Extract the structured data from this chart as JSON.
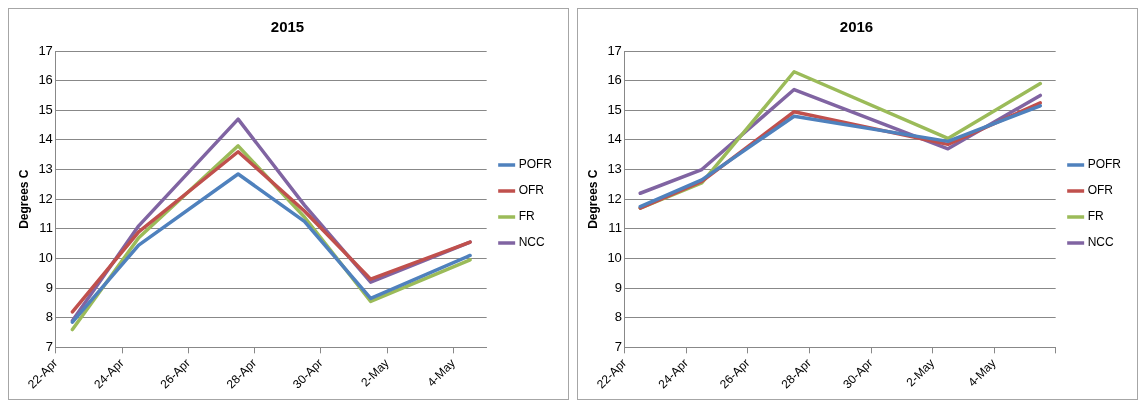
{
  "chart_data": [
    {
      "type": "line",
      "title": "2015",
      "ylabel": "Degrees C",
      "legend": "right",
      "grid": "y",
      "marker": "none",
      "x": [
        "2015-04-22T12:00",
        "2015-04-24T12:00",
        "2015-04-27T12:00",
        "2015-04-29T12:00",
        "2015-05-01T12:00",
        "2015-05-04T12:00"
      ],
      "xlim": [
        "2015-04-22",
        "2015-05-05"
      ],
      "xticks": [
        {
          "value": "2015-04-22",
          "label": "22-Apr"
        },
        {
          "value": "2015-04-24",
          "label": "24-Apr"
        },
        {
          "value": "2015-04-26",
          "label": "26-Apr"
        },
        {
          "value": "2015-04-28",
          "label": "28-Apr"
        },
        {
          "value": "2015-04-30",
          "label": "30-Apr"
        },
        {
          "value": "2015-05-02",
          "label": "2-May"
        },
        {
          "value": "2015-05-04",
          "label": "4-May"
        }
      ],
      "ylim": [
        7,
        17
      ],
      "yticks": [
        7,
        8,
        9,
        10,
        11,
        12,
        13,
        14,
        15,
        16,
        17
      ],
      "series": [
        {
          "name": "POFR",
          "color": "#4f81bd",
          "values": [
            7.85,
            10.45,
            12.85,
            11.25,
            8.65,
            10.1
          ]
        },
        {
          "name": "OFR",
          "color": "#c0504d",
          "values": [
            8.2,
            10.9,
            13.6,
            11.6,
            9.3,
            10.55
          ]
        },
        {
          "name": "FR",
          "color": "#9bbb59",
          "values": [
            7.6,
            10.7,
            13.8,
            11.4,
            8.55,
            9.95
          ]
        },
        {
          "name": "NCC",
          "color": "#8064a2",
          "values": [
            7.9,
            11.1,
            14.7,
            11.8,
            9.2,
            10.55
          ]
        }
      ]
    },
    {
      "type": "line",
      "title": "2016",
      "ylabel": "Degrees C",
      "legend": "right",
      "grid": "y",
      "marker": "none",
      "x": [
        "2016-04-22T12:00",
        "2016-04-24T12:00",
        "2016-04-27T12:00",
        "2016-05-02T12:00",
        "2016-05-05T12:00"
      ],
      "xlim": [
        "2016-04-22",
        "2016-05-06"
      ],
      "xticks": [
        {
          "value": "2016-04-22",
          "label": "22-Apr"
        },
        {
          "value": "2016-04-24",
          "label": "24-Apr"
        },
        {
          "value": "2016-04-26",
          "label": "26-Apr"
        },
        {
          "value": "2016-04-28",
          "label": "28-Apr"
        },
        {
          "value": "2016-04-30",
          "label": "30-Apr"
        },
        {
          "value": "2016-05-02",
          "label": "2-May"
        },
        {
          "value": "2016-05-04",
          "label": "4-May"
        },
        {
          "value": "2016-05-06",
          "label": null
        }
      ],
      "ylim": [
        7,
        17
      ],
      "yticks": [
        7,
        8,
        9,
        10,
        11,
        12,
        13,
        14,
        15,
        16,
        17
      ],
      "series": [
        {
          "name": "POFR",
          "color": "#4f81bd",
          "values": [
            11.75,
            12.65,
            14.8,
            13.95,
            15.15
          ]
        },
        {
          "name": "OFR",
          "color": "#c0504d",
          "values": [
            11.7,
            12.6,
            14.95,
            13.85,
            15.25
          ]
        },
        {
          "name": "FR",
          "color": "#9bbb59",
          "values": [
            11.7,
            12.55,
            16.3,
            14.05,
            15.9
          ]
        },
        {
          "name": "NCC",
          "color": "#8064a2",
          "values": [
            12.2,
            13.0,
            15.7,
            13.7,
            15.5
          ]
        }
      ]
    }
  ]
}
